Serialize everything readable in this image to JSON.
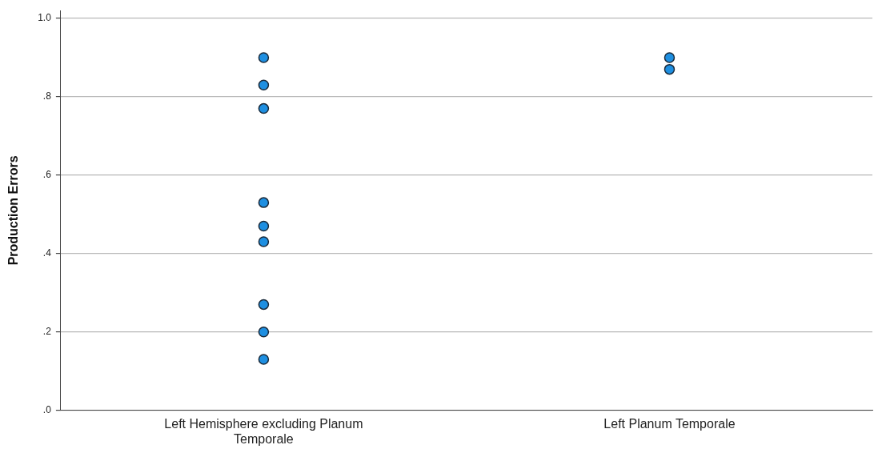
{
  "chart_data": {
    "type": "scatter",
    "ylabel": "Production Errors",
    "categories": [
      "Left Hemisphere excluding Planum Temporale",
      "Left Planum Temporale"
    ],
    "series": [
      {
        "color": "#1e8fe1",
        "x": [
          "Left Hemisphere excluding Planum Temporale",
          "Left Hemisphere excluding Planum Temporale",
          "Left Hemisphere excluding Planum Temporale",
          "Left Hemisphere excluding Planum Temporale",
          "Left Hemisphere excluding Planum Temporale",
          "Left Hemisphere excluding Planum Temporale",
          "Left Hemisphere excluding Planum Temporale",
          "Left Hemisphere excluding Planum Temporale",
          "Left Hemisphere excluding Planum Temporale",
          "Left Planum Temporale",
          "Left Planum Temporale"
        ],
        "values": [
          0.9,
          0.83,
          0.77,
          0.53,
          0.47,
          0.43,
          0.27,
          0.2,
          0.13,
          0.9,
          0.87
        ]
      }
    ],
    "ylim": [
      0,
      1.02
    ],
    "yticks": [
      {
        "value": 0,
        "label": ".0"
      },
      {
        "value": 0.2,
        "label": ".2"
      },
      {
        "value": 0.4,
        "label": ".4"
      },
      {
        "value": 0.6,
        "label": ".6"
      },
      {
        "value": 0.8,
        "label": ".8"
      },
      {
        "value": 1,
        "label": "1.0"
      }
    ],
    "grid": "y",
    "legend": false,
    "marker": "circle"
  }
}
